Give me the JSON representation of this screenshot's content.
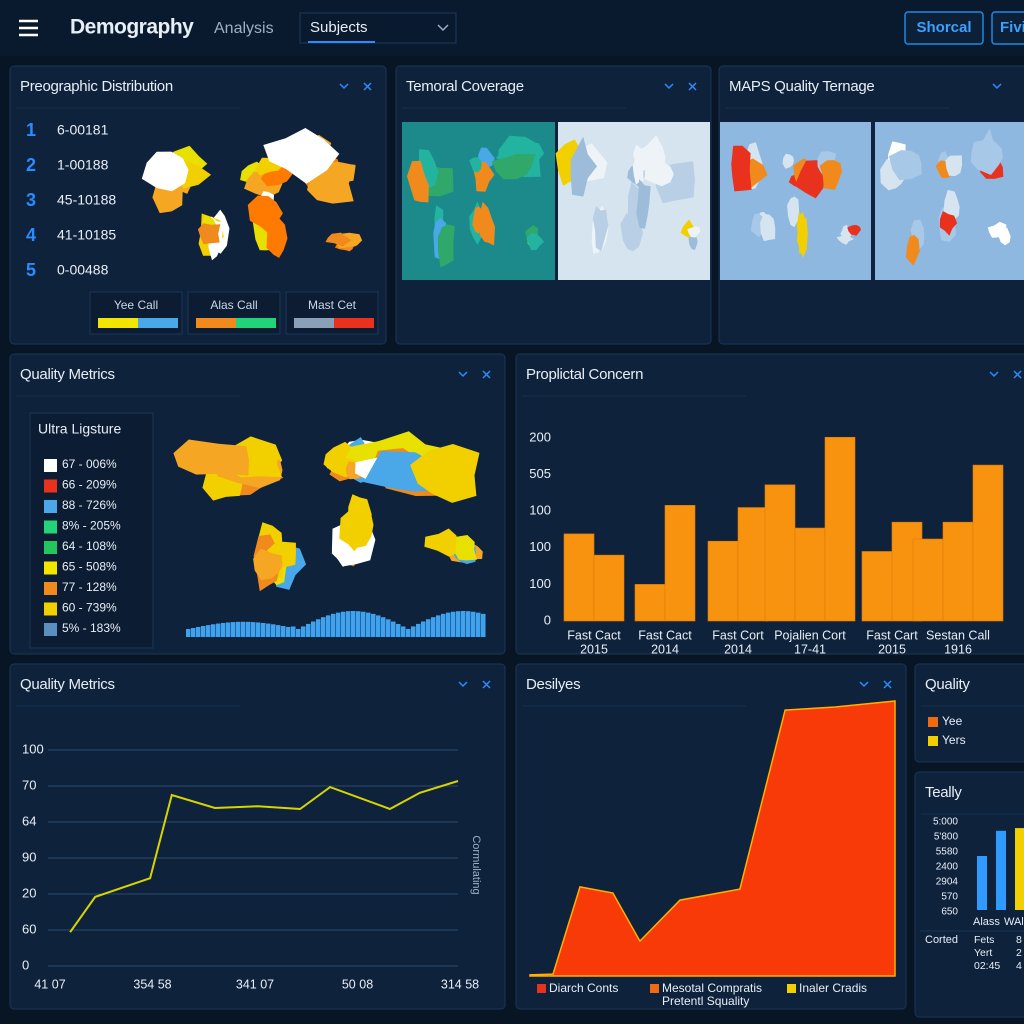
{
  "header": {
    "title": "Demography",
    "subtitle": "Analysis",
    "dropdown": "Subjects",
    "buttons": [
      "Shorcal",
      "Fivi"
    ]
  },
  "panels": {
    "distribution": {
      "title": "Preographic Distribution",
      "items": [
        {
          "rank": "1",
          "label": "6-00181"
        },
        {
          "rank": "2",
          "label": "1-00188"
        },
        {
          "rank": "3",
          "label": "45-10188"
        },
        {
          "rank": "4",
          "label": "41-10185"
        },
        {
          "rank": "5",
          "label": "0-00488"
        }
      ],
      "legend": [
        {
          "label": "Yee Call",
          "colors": [
            "#f2e600",
            "#4aa8e8"
          ]
        },
        {
          "label": "Alas Call",
          "colors": [
            "#f08a1c",
            "#22d37a"
          ]
        },
        {
          "label": "Mast Cet",
          "colors": [
            "#8aa0b8",
            "#e8321e"
          ]
        }
      ]
    },
    "temporal": {
      "title": "Temoral Coverage"
    },
    "maps": {
      "title": "MAPS Quality Ternage"
    },
    "quality_map": {
      "title": "Quality Metrics",
      "legend_title": "Ultra Ligsture",
      "legend": [
        {
          "label": "67 - 006%",
          "color": "#ffffff"
        },
        {
          "label": "66 - 209%",
          "color": "#e8321e"
        },
        {
          "label": "88 - 726%",
          "color": "#4aa8e8"
        },
        {
          "label": "8% - 205%",
          "color": "#22d37a"
        },
        {
          "label": "64 - 108%",
          "color": "#22c55e"
        },
        {
          "label": "65 - 508%",
          "color": "#f2e600"
        },
        {
          "label": "77 - 128%",
          "color": "#f08a1c"
        },
        {
          "label": "60 - 739%",
          "color": "#f2d000"
        },
        {
          "label": "5% - 183%",
          "color": "#5a8fc0"
        }
      ]
    },
    "quality": {
      "title": "Quality",
      "legend": [
        {
          "label": "Yee",
          "color": "#f06a10"
        },
        {
          "label": "Yers",
          "color": "#f2d000"
        }
      ]
    }
  },
  "chart_data": [
    {
      "type": "grouped_bar",
      "title": "Proplictal Concern",
      "color": "#f7930f",
      "ylim": [
        0,
        260
      ],
      "y_labels": [
        "0",
        "100",
        "100",
        "100",
        "505",
        "200"
      ],
      "groups": [
        {
          "label": [
            "Fast Cact",
            "2015"
          ],
          "values": [
            119,
            90
          ]
        },
        {
          "label": [
            "Fast Cact",
            "2014"
          ],
          "values": [
            50,
            158
          ]
        },
        {
          "label": [
            "Fast Cort",
            "2014"
          ],
          "values": [
            109,
            155
          ]
        },
        {
          "label": [
            "Pojalien Cort",
            "17-41"
          ],
          "values": [
            186,
            127,
            251
          ]
        },
        {
          "label": [
            "Fast Cart",
            "2015"
          ],
          "values": [
            95,
            135
          ]
        },
        {
          "label": [
            "Sestan Call",
            "1916"
          ],
          "values": [
            112,
            135,
            213
          ]
        }
      ]
    },
    {
      "type": "line",
      "title": "Quality Metrics",
      "color": "#d8d400",
      "xlim": [
        0,
        100
      ],
      "ylim": [
        0,
        6
      ],
      "grid": true,
      "y_labels": [
        "0",
        "60",
        "20",
        "90",
        "64",
        "70",
        "100"
      ],
      "x_labels": [
        "41 07",
        "354 58",
        "341 07",
        "50 08",
        "314 58"
      ],
      "side_label": "Cormulating",
      "x": [
        5.4,
        11.5,
        24.9,
        30.2,
        40.7,
        51.2,
        61.5,
        68.8,
        83.4,
        90.7,
        100
      ],
      "values": [
        0.94,
        1.92,
        2.44,
        4.75,
        4.39,
        4.44,
        4.36,
        4.97,
        4.36,
        4.81,
        5.14
      ]
    },
    {
      "type": "area",
      "title": "Desilyes",
      "color": "#f83a08",
      "xlim": [
        0,
        100
      ],
      "ylim": [
        0,
        100
      ],
      "x": [
        0,
        6.3,
        13.7,
        22.7,
        30.1,
        41.1,
        57.5,
        69.9,
        83.6,
        100
      ],
      "values": [
        0.4,
        0.7,
        32.4,
        30.2,
        12.7,
        27.6,
        31.6,
        96.7,
        97.8,
        100
      ],
      "legend": [
        {
          "label": "Diarch Conts",
          "color": "#e8321e"
        },
        {
          "label": "Mesotal Compratis",
          "color": "#f06a10"
        },
        {
          "label": "Inaler Cradis",
          "color": "#f2d000"
        }
      ],
      "note": "Pretentl Squality"
    },
    {
      "type": "mini_bar",
      "title": "Teally",
      "ylim": [
        0,
        100
      ],
      "y_labels": [
        "5:000",
        "5'800",
        "5580",
        "2400",
        "2904",
        "570",
        "650"
      ],
      "x_labels": [
        "Alass",
        "WAl"
      ],
      "values": [
        60,
        88,
        91
      ],
      "colors": [
        "#2f9bff",
        "#2f9bff",
        "#f2d000"
      ],
      "table_label": "Corted",
      "table": [
        [
          "Fets",
          "8"
        ],
        [
          "Yert",
          "2"
        ],
        [
          "02:45",
          "4"
        ]
      ]
    }
  ]
}
